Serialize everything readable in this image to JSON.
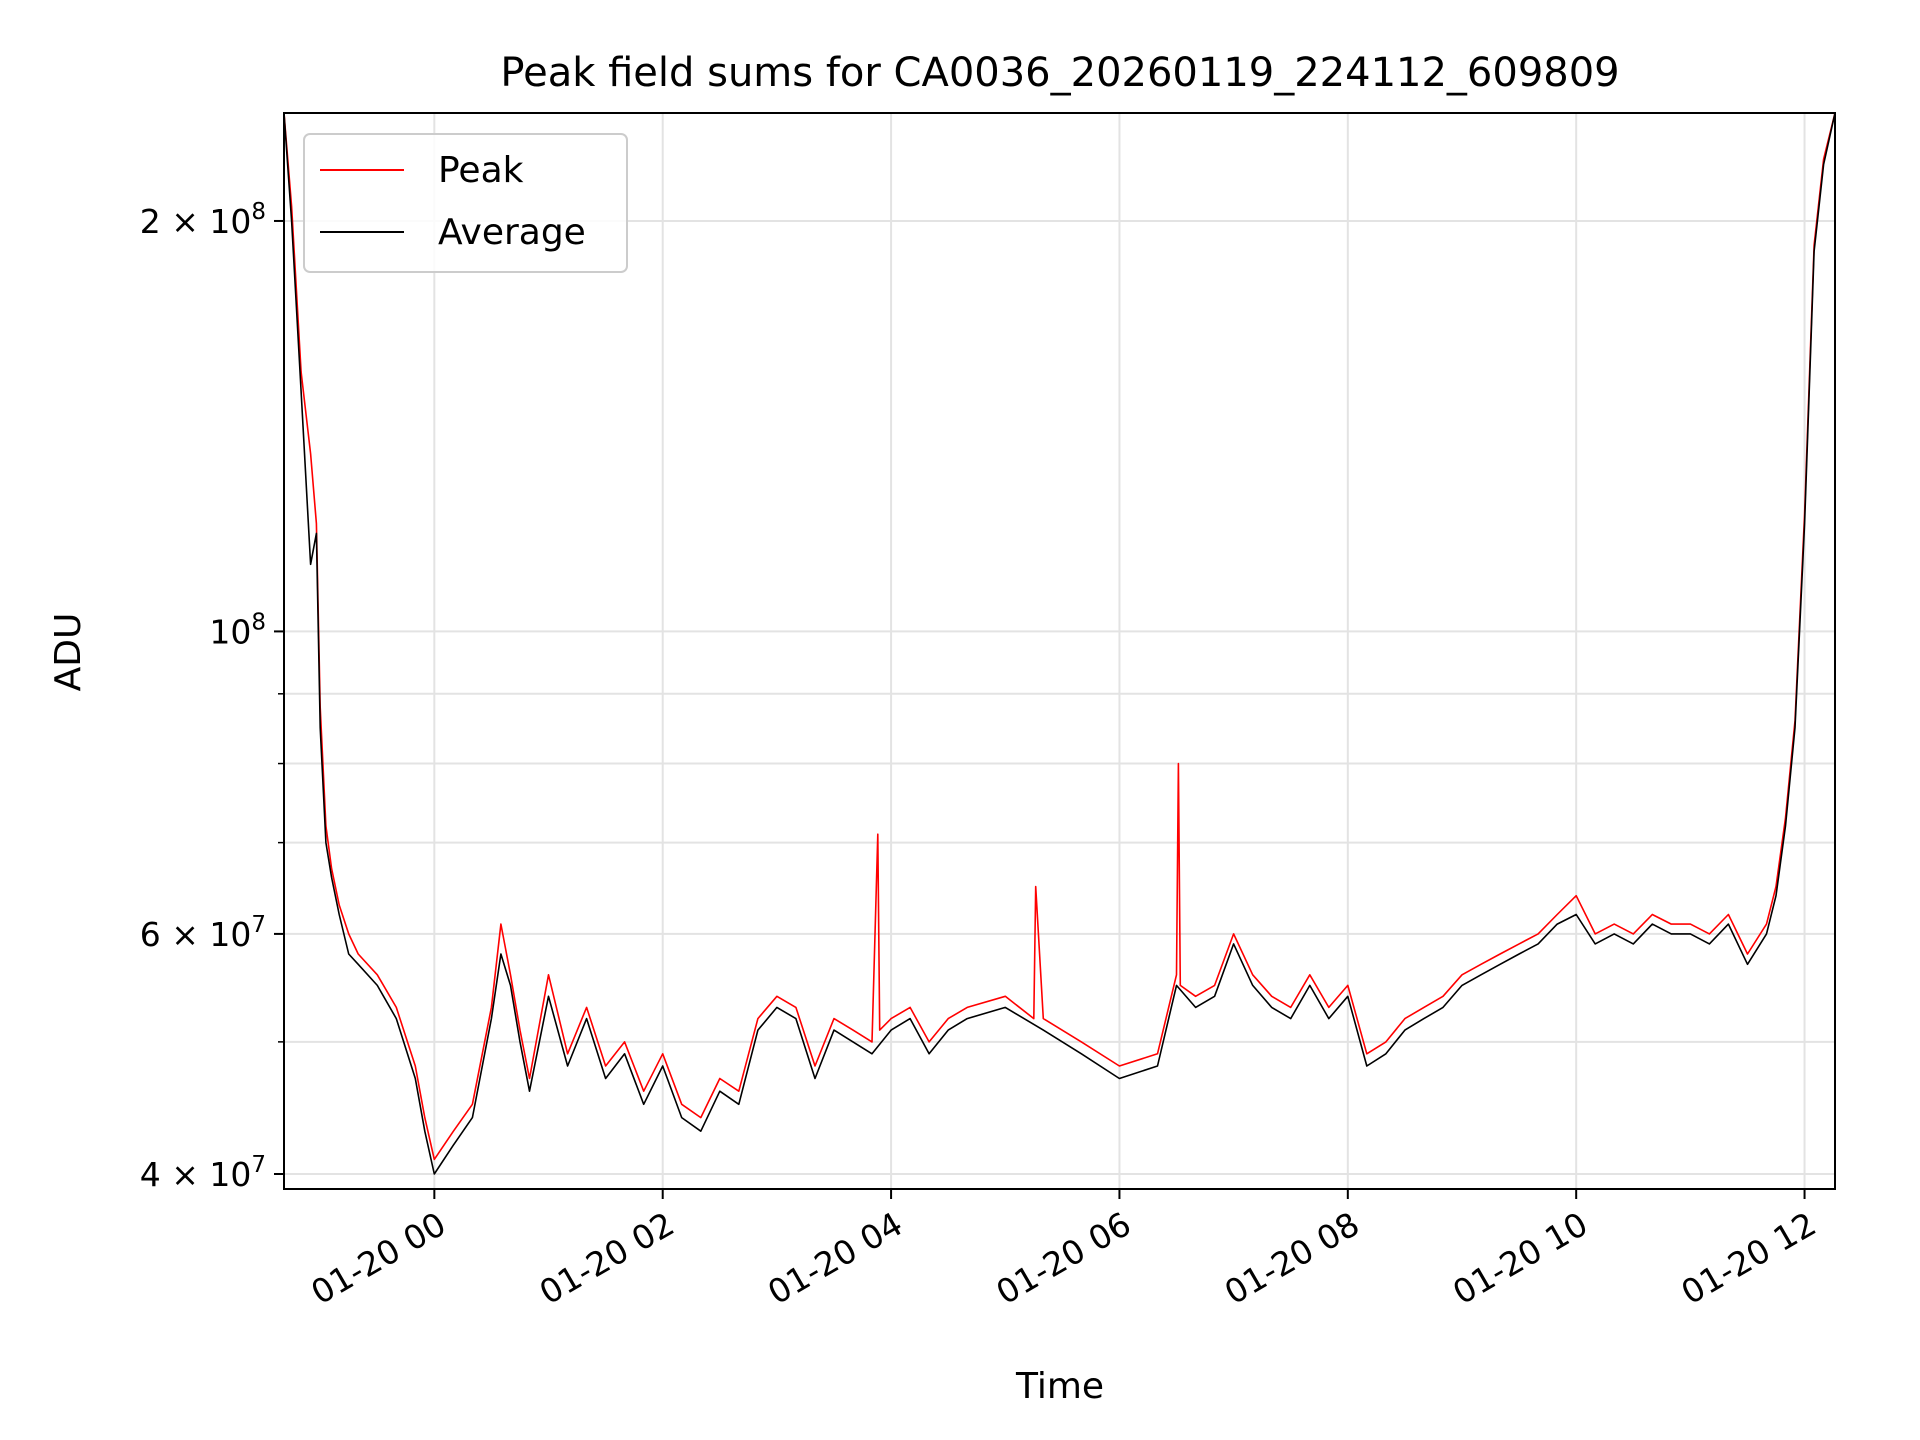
{
  "chart_data": {
    "type": "line",
    "title": "Peak field sums for CA0036_20260119_224112_609809",
    "xlabel": "Time",
    "ylabel": "ADU",
    "yscale": "log",
    "ylim": [
      39000000,
      240000000
    ],
    "xlim": [
      "2026-01-19 22:41",
      "2026-01-20 12:16"
    ],
    "x_ticks": [
      {
        "value": "2026-01-20 00:00",
        "label": "01-20 00"
      },
      {
        "value": "2026-01-20 02:00",
        "label": "01-20 02"
      },
      {
        "value": "2026-01-20 04:00",
        "label": "01-20 04"
      },
      {
        "value": "2026-01-20 06:00",
        "label": "01-20 06"
      },
      {
        "value": "2026-01-20 08:00",
        "label": "01-20 08"
      },
      {
        "value": "2026-01-20 10:00",
        "label": "01-20 10"
      },
      {
        "value": "2026-01-20 12:00",
        "label": "01-20 12"
      }
    ],
    "y_ticks": [
      {
        "value": 40000000,
        "base": "4 × 10",
        "exp": "7"
      },
      {
        "value": 60000000,
        "base": "6 × 10",
        "exp": "7"
      },
      {
        "value": 100000000,
        "base": "10",
        "exp": "8"
      },
      {
        "value": 200000000,
        "base": "2 × 10",
        "exp": "8"
      }
    ],
    "y_minor_ticks": [
      50000000,
      70000000,
      80000000,
      90000000
    ],
    "grid": true,
    "legend": {
      "placement": "top-left",
      "entries": [
        {
          "name": "Peak",
          "color": "#ff0000"
        },
        {
          "name": "Average",
          "color": "#000000"
        }
      ]
    },
    "series": [
      {
        "name": "Average",
        "color": "#000000",
        "x": [
          "2026-01-19 22:41",
          "2026-01-19 22:45",
          "2026-01-19 22:50",
          "2026-01-19 22:55",
          "2026-01-19 22:58",
          "2026-01-19 23:00",
          "2026-01-19 23:03",
          "2026-01-19 23:06",
          "2026-01-19 23:10",
          "2026-01-19 23:15",
          "2026-01-19 23:20",
          "2026-01-19 23:30",
          "2026-01-19 23:40",
          "2026-01-19 23:50",
          "2026-01-19 23:55",
          "2026-01-20 00:00",
          "2026-01-20 00:10",
          "2026-01-20 00:20",
          "2026-01-20 00:30",
          "2026-01-20 00:35",
          "2026-01-20 00:40",
          "2026-01-20 00:45",
          "2026-01-20 00:50",
          "2026-01-20 01:00",
          "2026-01-20 01:10",
          "2026-01-20 01:20",
          "2026-01-20 01:30",
          "2026-01-20 01:40",
          "2026-01-20 01:50",
          "2026-01-20 02:00",
          "2026-01-20 02:10",
          "2026-01-20 02:20",
          "2026-01-20 02:30",
          "2026-01-20 02:40",
          "2026-01-20 02:50",
          "2026-01-20 03:00",
          "2026-01-20 03:10",
          "2026-01-20 03:20",
          "2026-01-20 03:30",
          "2026-01-20 03:40",
          "2026-01-20 03:50",
          "2026-01-20 04:00",
          "2026-01-20 04:10",
          "2026-01-20 04:20",
          "2026-01-20 04:30",
          "2026-01-20 04:40",
          "2026-01-20 05:00",
          "2026-01-20 05:20",
          "2026-01-20 05:40",
          "2026-01-20 06:00",
          "2026-01-20 06:20",
          "2026-01-20 06:30",
          "2026-01-20 06:40",
          "2026-01-20 06:50",
          "2026-01-20 07:00",
          "2026-01-20 07:10",
          "2026-01-20 07:20",
          "2026-01-20 07:30",
          "2026-01-20 07:40",
          "2026-01-20 07:50",
          "2026-01-20 08:00",
          "2026-01-20 08:10",
          "2026-01-20 08:20",
          "2026-01-20 08:30",
          "2026-01-20 08:40",
          "2026-01-20 08:50",
          "2026-01-20 09:00",
          "2026-01-20 09:10",
          "2026-01-20 09:20",
          "2026-01-20 09:30",
          "2026-01-20 09:40",
          "2026-01-20 09:50",
          "2026-01-20 10:00",
          "2026-01-20 10:10",
          "2026-01-20 10:20",
          "2026-01-20 10:30",
          "2026-01-20 10:40",
          "2026-01-20 10:50",
          "2026-01-20 11:00",
          "2026-01-20 11:10",
          "2026-01-20 11:20",
          "2026-01-20 11:30",
          "2026-01-20 11:40",
          "2026-01-20 11:45",
          "2026-01-20 11:50",
          "2026-01-20 11:55",
          "2026-01-20 12:00",
          "2026-01-20 12:05",
          "2026-01-20 12:10",
          "2026-01-20 12:16"
        ],
        "y": [
          240000000,
          200000000,
          150000000,
          112000000,
          118000000,
          85000000,
          70000000,
          66000000,
          62000000,
          58000000,
          57000000,
          55000000,
          52000000,
          47000000,
          43000000,
          40000000,
          42000000,
          44000000,
          52000000,
          58000000,
          55000000,
          50000000,
          46000000,
          54000000,
          48000000,
          52000000,
          47000000,
          49000000,
          45000000,
          48000000,
          44000000,
          43000000,
          46000000,
          45000000,
          51000000,
          53000000,
          52000000,
          47000000,
          51000000,
          50000000,
          49000000,
          51000000,
          52000000,
          49000000,
          51000000,
          52000000,
          53000000,
          51000000,
          49000000,
          47000000,
          48000000,
          55000000,
          53000000,
          54000000,
          59000000,
          55000000,
          53000000,
          52000000,
          55000000,
          52000000,
          54000000,
          48000000,
          49000000,
          51000000,
          52000000,
          53000000,
          55000000,
          56000000,
          57000000,
          58000000,
          59000000,
          61000000,
          62000000,
          59000000,
          60000000,
          59000000,
          61000000,
          60000000,
          60000000,
          59000000,
          61000000,
          57000000,
          60000000,
          64000000,
          72000000,
          85000000,
          120000000,
          190000000,
          220000000,
          240000000
        ]
      },
      {
        "name": "Peak",
        "color": "#ff0000",
        "x": [
          "2026-01-19 22:41",
          "2026-01-19 22:45",
          "2026-01-19 22:50",
          "2026-01-19 22:55",
          "2026-01-19 22:58",
          "2026-01-19 23:00",
          "2026-01-19 23:03",
          "2026-01-19 23:06",
          "2026-01-19 23:10",
          "2026-01-19 23:15",
          "2026-01-19 23:20",
          "2026-01-19 23:30",
          "2026-01-19 23:40",
          "2026-01-19 23:50",
          "2026-01-19 23:55",
          "2026-01-20 00:00",
          "2026-01-20 00:10",
          "2026-01-20 00:20",
          "2026-01-20 00:30",
          "2026-01-20 00:35",
          "2026-01-20 00:40",
          "2026-01-20 00:45",
          "2026-01-20 00:50",
          "2026-01-20 01:00",
          "2026-01-20 01:10",
          "2026-01-20 01:20",
          "2026-01-20 01:30",
          "2026-01-20 01:40",
          "2026-01-20 01:50",
          "2026-01-20 02:00",
          "2026-01-20 02:10",
          "2026-01-20 02:20",
          "2026-01-20 02:30",
          "2026-01-20 02:40",
          "2026-01-20 02:50",
          "2026-01-20 03:00",
          "2026-01-20 03:10",
          "2026-01-20 03:20",
          "2026-01-20 03:30",
          "2026-01-20 03:40",
          "2026-01-20 03:50",
          "2026-01-20 03:53",
          "2026-01-20 03:54",
          "2026-01-20 04:00",
          "2026-01-20 04:10",
          "2026-01-20 04:20",
          "2026-01-20 04:30",
          "2026-01-20 04:40",
          "2026-01-20 05:00",
          "2026-01-20 05:15",
          "2026-01-20 05:16",
          "2026-01-20 05:20",
          "2026-01-20 05:40",
          "2026-01-20 06:00",
          "2026-01-20 06:20",
          "2026-01-20 06:30",
          "2026-01-20 06:31",
          "2026-01-20 06:32",
          "2026-01-20 06:40",
          "2026-01-20 06:50",
          "2026-01-20 07:00",
          "2026-01-20 07:10",
          "2026-01-20 07:20",
          "2026-01-20 07:30",
          "2026-01-20 07:40",
          "2026-01-20 07:50",
          "2026-01-20 08:00",
          "2026-01-20 08:10",
          "2026-01-20 08:20",
          "2026-01-20 08:30",
          "2026-01-20 08:40",
          "2026-01-20 08:50",
          "2026-01-20 09:00",
          "2026-01-20 09:10",
          "2026-01-20 09:20",
          "2026-01-20 09:30",
          "2026-01-20 09:40",
          "2026-01-20 09:50",
          "2026-01-20 10:00",
          "2026-01-20 10:10",
          "2026-01-20 10:20",
          "2026-01-20 10:30",
          "2026-01-20 10:40",
          "2026-01-20 10:50",
          "2026-01-20 11:00",
          "2026-01-20 11:10",
          "2026-01-20 11:20",
          "2026-01-20 11:30",
          "2026-01-20 11:40",
          "2026-01-20 11:45",
          "2026-01-20 11:50",
          "2026-01-20 11:55",
          "2026-01-20 12:00",
          "2026-01-20 12:05",
          "2026-01-20 12:10",
          "2026-01-20 12:16"
        ],
        "y": [
          240000000,
          205000000,
          155000000,
          135000000,
          120000000,
          88000000,
          72000000,
          67000000,
          63000000,
          60000000,
          58000000,
          56000000,
          53000000,
          48000000,
          44000000,
          41000000,
          43000000,
          45000000,
          53000000,
          61000000,
          56000000,
          51000000,
          47000000,
          56000000,
          49000000,
          53000000,
          48000000,
          50000000,
          46000000,
          49000000,
          45000000,
          44000000,
          47000000,
          46000000,
          52000000,
          54000000,
          53000000,
          48000000,
          52000000,
          51000000,
          50000000,
          71000000,
          51000000,
          52000000,
          53000000,
          50000000,
          52000000,
          53000000,
          54000000,
          52000000,
          65000000,
          52000000,
          50000000,
          48000000,
          49000000,
          56000000,
          80000000,
          55000000,
          54000000,
          55000000,
          60000000,
          56000000,
          54000000,
          53000000,
          56000000,
          53000000,
          55000000,
          49000000,
          50000000,
          52000000,
          53000000,
          54000000,
          56000000,
          57000000,
          58000000,
          59000000,
          60000000,
          62000000,
          64000000,
          60000000,
          61000000,
          60000000,
          62000000,
          61000000,
          61000000,
          60000000,
          62000000,
          58000000,
          61000000,
          65000000,
          73000000,
          86000000,
          122000000,
          192000000,
          222000000,
          240000000
        ]
      }
    ]
  }
}
